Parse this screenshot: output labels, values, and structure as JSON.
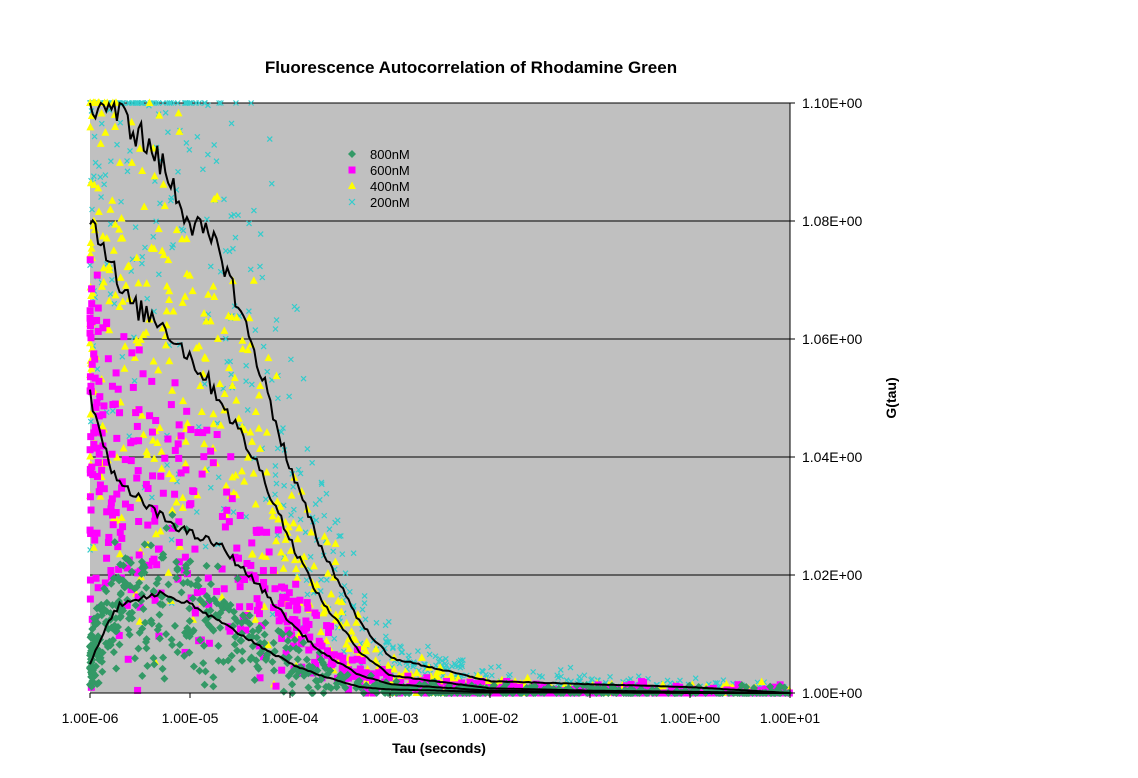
{
  "chart_data": {
    "type": "scatter",
    "title": "Fluorescence Autocorrelation of Rhodamine Green",
    "xlabel": "Tau (seconds)",
    "ylabel": "G(tau)",
    "x_scale": "log",
    "xlim": [
      1e-06,
      10
    ],
    "ylim": [
      1.0,
      1.1
    ],
    "grid": "horizontal major gridlines",
    "legend_position": "top-center inside plot",
    "y_axis_side": "right",
    "plot_background": "#C0C0C0",
    "x_tick_labels": [
      "1.00E-06",
      "1.00E-05",
      "1.00E-04",
      "1.00E-03",
      "1.00E-02",
      "1.00E-01",
      "1.00E+00",
      "1.00E+01"
    ],
    "y_tick_labels": [
      "1.00E+00",
      "1.02E+00",
      "1.04E+00",
      "1.06E+00",
      "1.08E+00",
      "1.10E+00"
    ],
    "series": [
      {
        "name": "800nM",
        "marker": "diamond",
        "color": "#339966",
        "x": [
          1e-06,
          1.5e-06,
          2e-06,
          3e-06,
          5e-06,
          1e-05,
          2e-05,
          5e-05,
          0.0001,
          0.0002,
          0.0005,
          0.001,
          0.01,
          0.1,
          1,
          10
        ],
        "y": [
          1.005,
          1.012,
          1.015,
          1.016,
          1.017,
          1.015,
          1.012,
          1.008,
          1.005,
          1.003,
          1.001,
          1.0006,
          1.0002,
          1.0001,
          1.0,
          1.0
        ]
      },
      {
        "name": "600nM",
        "marker": "square",
        "color": "#FF00FF",
        "x": [
          1e-06,
          1.5e-06,
          2e-06,
          3e-06,
          5e-06,
          1e-05,
          2e-05,
          5e-05,
          0.0001,
          0.0002,
          0.0005,
          0.001,
          0.01,
          0.1,
          1,
          10
        ],
        "y": [
          1.05,
          1.04,
          1.035,
          1.033,
          1.03,
          1.027,
          1.025,
          1.018,
          1.012,
          1.007,
          1.003,
          1.0015,
          1.0004,
          1.0002,
          1.0001,
          1.0
        ]
      },
      {
        "name": "400nM",
        "marker": "triangle",
        "color": "#FFFF00",
        "x": [
          1e-06,
          1.5e-06,
          2e-06,
          3e-06,
          5e-06,
          1e-05,
          2e-05,
          5e-05,
          0.0001,
          0.0002,
          0.0005,
          0.001,
          0.01,
          0.1,
          1,
          10
        ],
        "y": [
          1.08,
          1.075,
          1.068,
          1.065,
          1.063,
          1.057,
          1.05,
          1.038,
          1.026,
          1.016,
          1.007,
          1.003,
          1.0008,
          1.0004,
          1.0002,
          1.0
        ]
      },
      {
        "name": "200nM",
        "marker": "x",
        "color": "#33CCCC",
        "x": [
          1e-06,
          1.5e-06,
          2e-06,
          3e-06,
          5e-06,
          1e-05,
          2e-05,
          5e-05,
          0.0001,
          0.0002,
          0.0005,
          0.001,
          0.01,
          0.1,
          1,
          10
        ],
        "y": [
          1.1,
          1.1,
          1.098,
          1.095,
          1.09,
          1.08,
          1.075,
          1.055,
          1.038,
          1.025,
          1.012,
          1.006,
          1.002,
          1.0015,
          1.001,
          1.0
        ]
      }
    ]
  }
}
